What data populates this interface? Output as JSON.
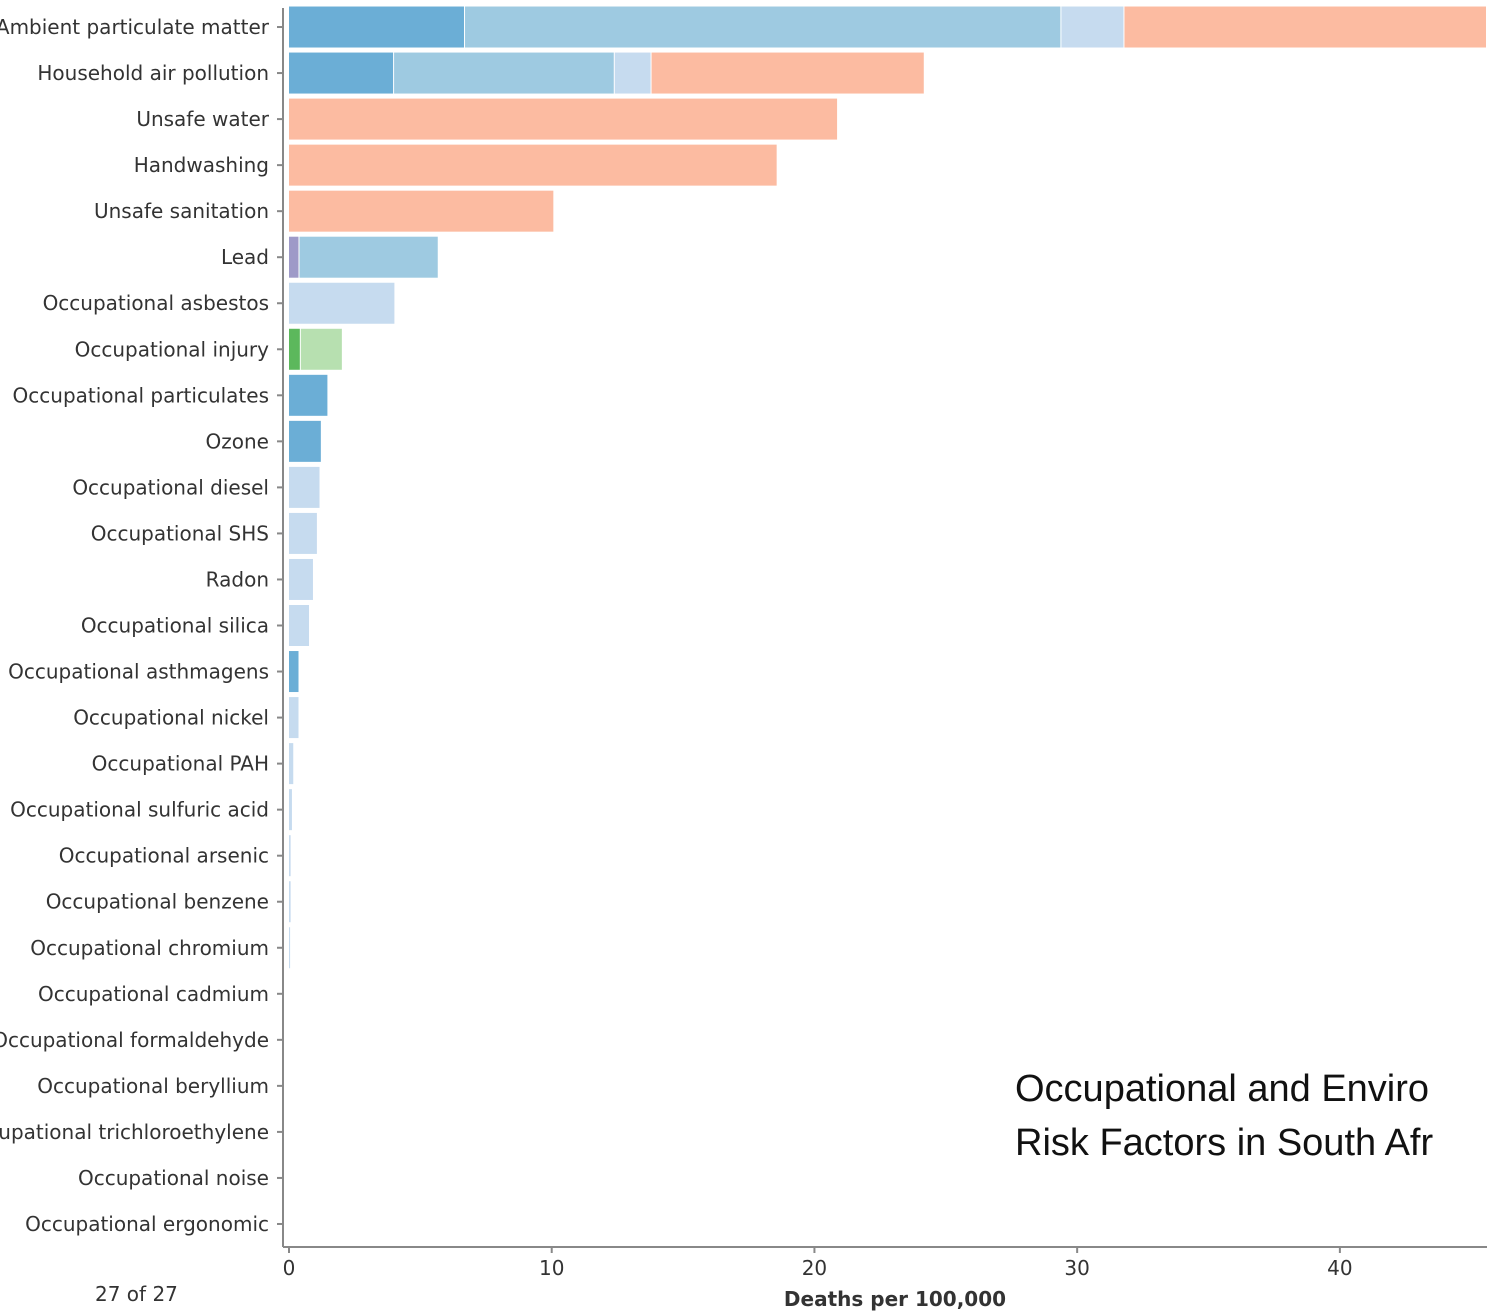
{
  "chart_data": {
    "type": "bar",
    "orientation": "horizontal",
    "stacked": true,
    "xlabel": "Deaths per 100,000",
    "xlim": [
      0,
      45.6
    ],
    "xticks": [
      0,
      10,
      20,
      30,
      40
    ],
    "categories": [
      "Ambient particulate matter",
      "Household air pollution",
      "Unsafe water",
      "Handwashing",
      "Unsafe sanitation",
      "Lead",
      "Occupational asbestos",
      "Occupational injury",
      "Occupational particulates",
      "Ozone",
      "Occupational diesel",
      "Occupational SHS",
      "Radon",
      "Occupational silica",
      "Occupational asthmagens",
      "Occupational nickel",
      "Occupational PAH",
      "Occupational sulfuric acid",
      "Occupational arsenic",
      "Occupational benzene",
      "Occupational chromium",
      "Occupational cadmium",
      "Occupational formaldehyde",
      "Occupational beryllium",
      "Occupational trichloroethylene",
      "Occupational noise",
      "Occupational ergonomic"
    ],
    "series": [
      {
        "color": "#6baed6",
        "values": [
          6.7,
          4.0,
          0,
          0,
          0,
          0,
          0,
          0,
          1.5,
          1.25,
          0,
          0,
          0,
          0,
          0.4,
          0,
          0,
          0,
          0,
          0,
          0,
          0,
          0,
          0,
          0,
          0,
          0
        ]
      },
      {
        "color": "#9ecae1",
        "values": [
          22.7,
          8.4,
          0,
          0,
          0,
          5.3,
          0,
          0,
          0,
          0,
          0,
          0,
          0,
          0,
          0,
          0,
          0,
          0,
          0,
          0,
          0,
          0,
          0,
          0,
          0,
          0,
          0
        ]
      },
      {
        "color": "#c6dbef",
        "values": [
          2.4,
          1.4,
          0,
          0,
          0,
          0,
          4.05,
          0,
          0,
          0,
          1.2,
          1.1,
          0.95,
          0.8,
          0,
          0.4,
          0.2,
          0.15,
          0.1,
          0.1,
          0.08,
          0,
          0,
          0,
          0,
          0,
          0
        ]
      },
      {
        "color": "#fcbba1",
        "values": [
          13.8,
          10.4,
          20.9,
          18.6,
          10.1,
          0,
          0,
          0,
          0,
          0,
          0,
          0,
          0,
          0,
          0,
          0,
          0,
          0,
          0,
          0,
          0,
          0,
          0,
          0,
          0,
          0,
          0
        ]
      },
      {
        "color": "#9e9ac8",
        "values": [
          0,
          0,
          0,
          0,
          0,
          0.4,
          0,
          0,
          0,
          0,
          0,
          0,
          0,
          0,
          0,
          0,
          0,
          0,
          0,
          0,
          0,
          0,
          0,
          0,
          0,
          0,
          0
        ]
      },
      {
        "color": "#5cb85c",
        "values": [
          0,
          0,
          0,
          0,
          0,
          0,
          0,
          0.45,
          0,
          0,
          0,
          0,
          0,
          0,
          0,
          0,
          0,
          0,
          0,
          0,
          0,
          0,
          0,
          0,
          0,
          0,
          0
        ]
      },
      {
        "color": "#b7e0b0",
        "values": [
          0,
          0,
          0,
          0,
          0,
          0,
          0,
          1.6,
          0,
          0,
          0,
          0,
          0,
          0,
          0,
          0,
          0,
          0,
          0,
          0,
          0,
          0,
          0,
          0,
          0,
          0,
          0
        ]
      }
    ],
    "stack_order": [
      [
        0,
        1,
        2,
        3
      ],
      [
        0,
        1,
        2,
        3
      ],
      [
        3
      ],
      [
        3
      ],
      [
        3
      ],
      [
        4,
        1
      ],
      [
        2
      ],
      [
        5,
        6
      ],
      [
        0
      ],
      [
        0
      ],
      [
        2
      ],
      [
        2
      ],
      [
        2
      ],
      [
        2
      ],
      [
        0
      ],
      [
        2
      ],
      [
        2
      ],
      [
        2
      ],
      [
        2
      ],
      [
        2
      ],
      [
        2
      ],
      [],
      [],
      [],
      [],
      [],
      []
    ]
  },
  "footer": {
    "counter_text": "27 of 27"
  },
  "overlay": {
    "line1": "Occupational and Enviro",
    "line2": "Risk Factors in South Afr"
  }
}
